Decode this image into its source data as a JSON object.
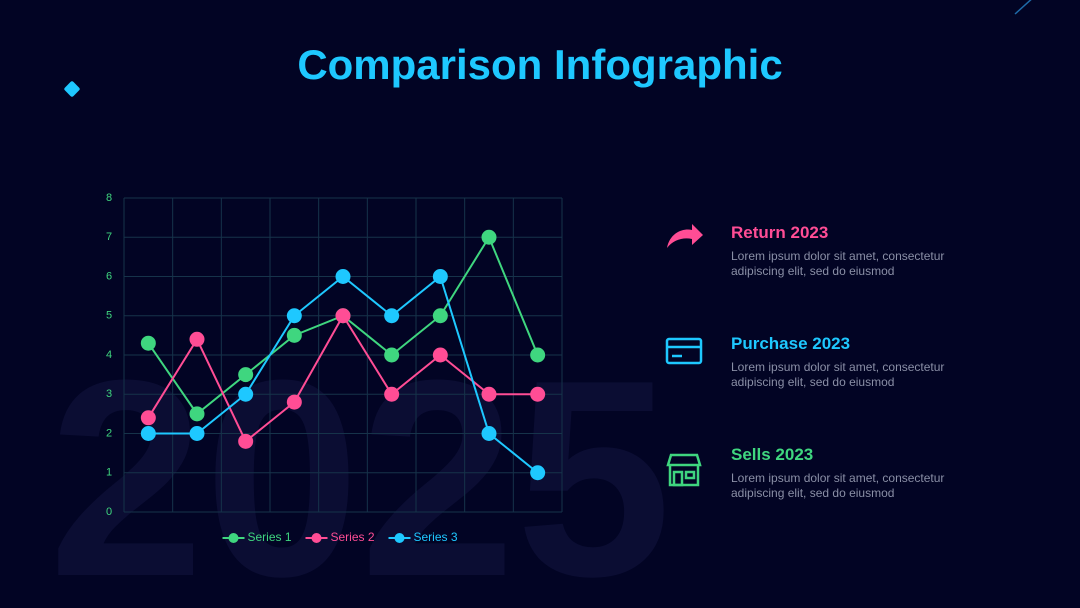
{
  "title": "Comparison Infographic",
  "watermark": "2025",
  "chart_data": {
    "type": "line",
    "categories": [
      null,
      null,
      null,
      null,
      null,
      null,
      null,
      null,
      null
    ],
    "ylim": [
      0,
      8
    ],
    "yticks": [
      0,
      1,
      2,
      3,
      4,
      5,
      6,
      7,
      8
    ],
    "grid": true,
    "legend": "bottom",
    "series": [
      {
        "name": "Series 1",
        "color": "#3fd67f",
        "values": [
          4.3,
          2.5,
          3.5,
          4.5,
          5,
          4,
          5,
          7,
          4
        ]
      },
      {
        "name": "Series 2",
        "color": "#ff4d95",
        "values": [
          2.4,
          4.4,
          1.8,
          2.8,
          5,
          3,
          4,
          3,
          3
        ]
      },
      {
        "name": "Series 3",
        "color": "#1ec8ff",
        "values": [
          2,
          2,
          3,
          5,
          6,
          5,
          6,
          2,
          1
        ]
      }
    ]
  },
  "items": [
    {
      "title": "Return 2023",
      "text": "Lorem ipsum dolor sit amet, consectetur adipiscing elit, sed do eiusmod"
    },
    {
      "title": "Purchase 2023",
      "text": "Lorem ipsum dolor sit amet, consectetur adipiscing elit, sed do eiusmod"
    },
    {
      "title": "Sells 2023",
      "text": "Lorem ipsum dolor sit amet, consectetur adipiscing elit, sed do eiusmod"
    }
  ]
}
